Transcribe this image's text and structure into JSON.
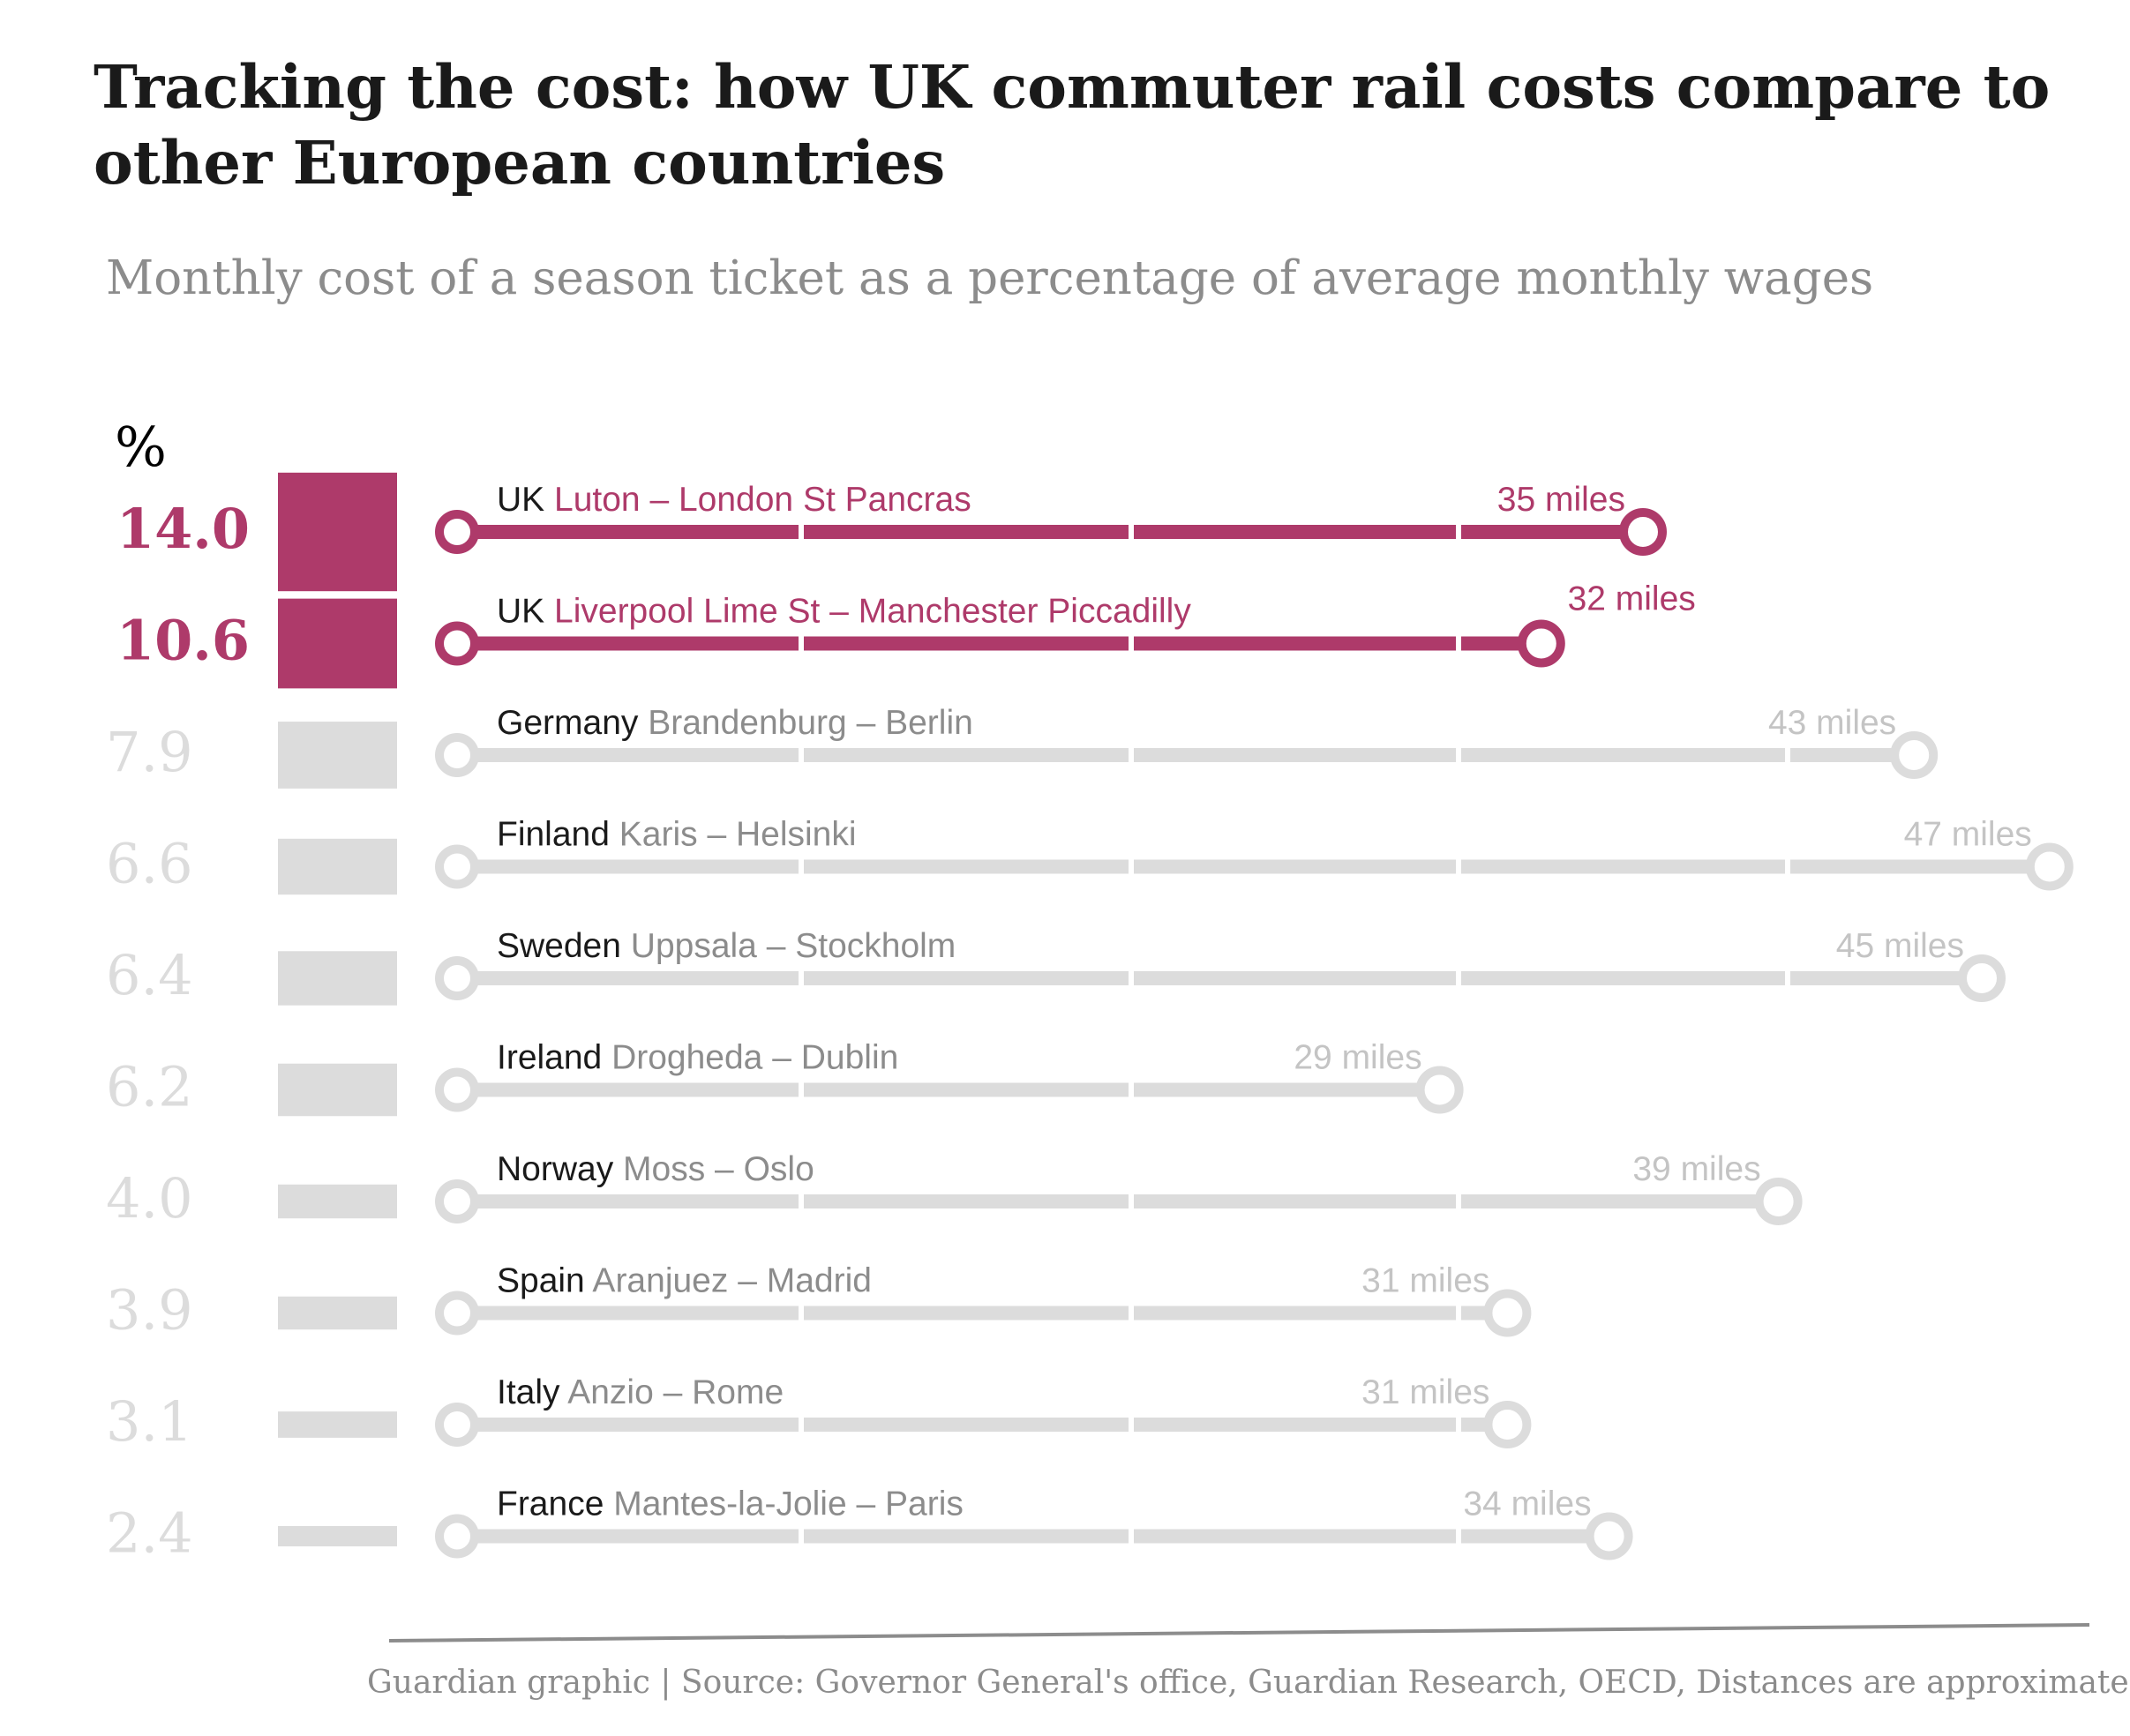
{
  "title": "Tracking the cost: how UK commuter rail costs compare to other European countries",
  "subtitle": "Monthly cost of a season ticket as a percentage of average monthly wages",
  "footnote": "Guardian graphic | Source: Governor General's office, Guardian Research, OECD, Distances are approximate",
  "colors": {
    "highlight": "#ae3a6a",
    "muted": "#dcdcdc",
    "muted_text": "#c4c4c4",
    "country_text": "#1a1a1a",
    "axis": "#8c8c8c"
  },
  "chart_data": {
    "type": "bar",
    "unit_label": "%",
    "title": "Tracking the cost: how UK commuter rail costs compare to other European countries",
    "subtitle": "Monthly cost of a season ticket as a percentage of average monthly wages",
    "rows": [
      {
        "pct": 14.0,
        "pct_label": "14.0",
        "country": "UK",
        "route": "Luton – London St Pancras",
        "miles": 35,
        "miles_label": "35 miles",
        "highlight": true
      },
      {
        "pct": 10.6,
        "pct_label": "10.6",
        "country": "UK",
        "route": "Liverpool Lime St – Manchester Piccadilly",
        "miles": 32,
        "miles_label": "32 miles",
        "highlight": true
      },
      {
        "pct": 7.9,
        "pct_label": "7.9",
        "country": "Germany",
        "route": "Brandenburg – Berlin",
        "miles": 43,
        "miles_label": "43 miles",
        "highlight": false
      },
      {
        "pct": 6.6,
        "pct_label": "6.6",
        "country": "Finland",
        "route": "Karis – Helsinki",
        "miles": 47,
        "miles_label": "47 miles",
        "highlight": false
      },
      {
        "pct": 6.4,
        "pct_label": "6.4",
        "country": "Sweden",
        "route": "Uppsala – Stockholm",
        "miles": 45,
        "miles_label": "45 miles",
        "highlight": false
      },
      {
        "pct": 6.2,
        "pct_label": "6.2",
        "country": "Ireland",
        "route": "Drogheda – Dublin",
        "miles": 29,
        "miles_label": "29 miles",
        "highlight": false
      },
      {
        "pct": 4.0,
        "pct_label": "4.0",
        "country": "Norway",
        "route": "Moss – Oslo",
        "miles": 39,
        "miles_label": "39 miles",
        "highlight": false
      },
      {
        "pct": 3.9,
        "pct_label": "3.9",
        "country": "Spain",
        "route": "Aranjuez – Madrid",
        "miles": 31,
        "miles_label": "31 miles",
        "highlight": false
      },
      {
        "pct": 3.1,
        "pct_label": "3.1",
        "country": "Italy",
        "route": "Anzio – Rome",
        "miles": 31,
        "miles_label": "31 miles",
        "highlight": false
      },
      {
        "pct": 2.4,
        "pct_label": "2.4",
        "country": "France",
        "route": "Mantes-la-Jolie – Paris",
        "miles": 34,
        "miles_label": "34 miles",
        "highlight": false
      }
    ]
  }
}
